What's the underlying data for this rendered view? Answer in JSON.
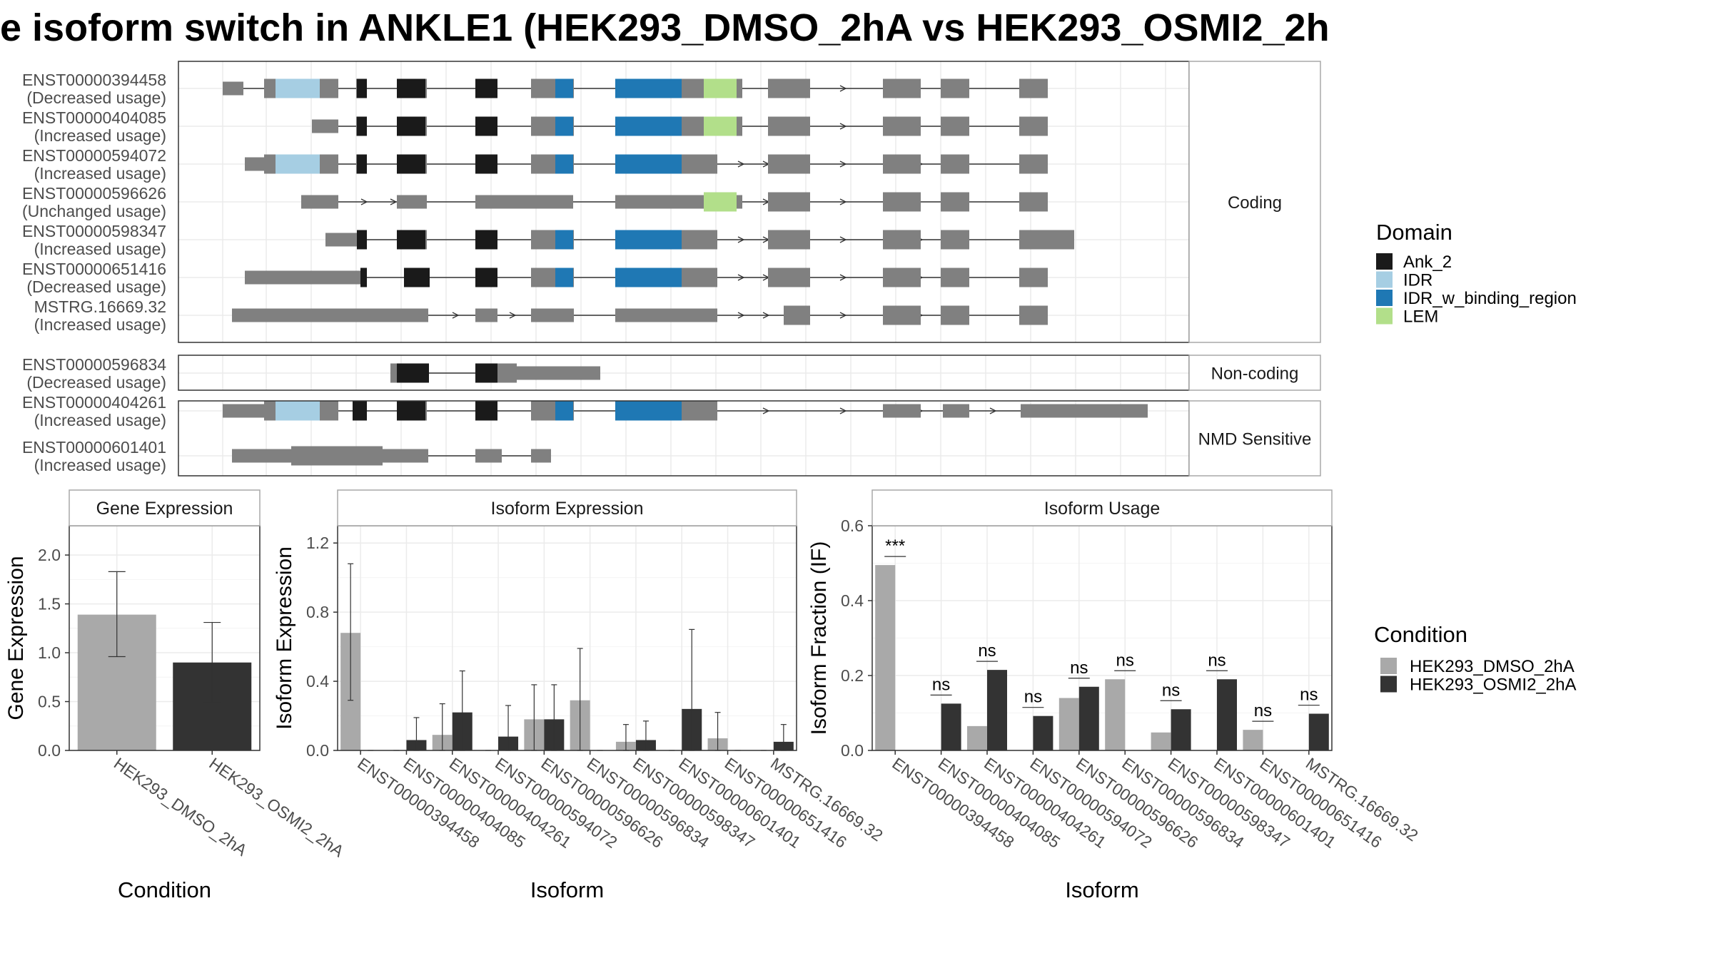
{
  "title": "e isoform switch in ANKLE1 (HEK293_DMSO_2hA vs HEK293_OSMI2_2h",
  "colors": {
    "Ank_2": "#1a1a1a",
    "IDR": "#a6cee3",
    "IDR_w_binding_region": "#1f78b4",
    "LEM": "#b2df8a",
    "exon": "#808080",
    "cond_dmso": "#a9a9a9",
    "cond_osmi": "#333333"
  },
  "legends": {
    "domain": {
      "title": "Domain",
      "items": [
        "Ank_2",
        "IDR",
        "IDR_w_binding_region",
        "LEM"
      ]
    },
    "condition": {
      "title": "Condition",
      "items": [
        "HEK293_DMSO_2hA",
        "HEK293_OSMI2_2hA"
      ]
    }
  },
  "structure": {
    "panels": [
      {
        "label": "Coding",
        "isoforms": [
          {
            "id": "ENST00000394458",
            "usage": "(Decreased usage)"
          },
          {
            "id": "ENST00000404085",
            "usage": "(Increased usage)"
          },
          {
            "id": "ENST00000594072",
            "usage": "(Increased usage)"
          },
          {
            "id": "ENST00000596626",
            "usage": "(Unchanged usage)"
          },
          {
            "id": "ENST00000598347",
            "usage": "(Increased usage)"
          },
          {
            "id": "ENST00000651416",
            "usage": "(Decreased usage)"
          },
          {
            "id": "MSTRG.16669.32",
            "usage": "(Increased usage)"
          }
        ]
      },
      {
        "label": "Non-coding",
        "isoforms": [
          {
            "id": "ENST00000596834",
            "usage": "(Decreased usage)"
          }
        ]
      },
      {
        "label": "NMD Sensitive",
        "isoforms": [
          {
            "id": "ENST00000404261",
            "usage": "(Increased usage)"
          },
          {
            "id": "ENST00000601401",
            "usage": "(Increased usage)"
          }
        ]
      }
    ]
  },
  "chart_data": [
    {
      "type": "bar",
      "title": "Gene Expression",
      "xlabel": "Condition",
      "ylabel": "Gene Expression",
      "ylim": [
        0,
        2.3
      ],
      "yticks": [
        "0.0",
        "0.5",
        "1.0",
        "1.5",
        "2.0"
      ],
      "categories": [
        "HEK293_DMSO_2hA",
        "HEK293_OSMI2_2hA"
      ],
      "values": [
        1.39,
        0.9
      ],
      "errors": [
        [
          0.96,
          1.83
        ],
        [
          0.49,
          1.31
        ]
      ]
    },
    {
      "type": "bar",
      "title": "Isoform Expression",
      "xlabel": "Isoform",
      "ylabel": "Isoform Expression",
      "ylim": [
        0,
        1.3
      ],
      "yticks": [
        "0.0",
        "0.4",
        "0.8",
        "1.2"
      ],
      "categories": [
        "ENST00000394458",
        "ENST00000404085",
        "ENST00000404261",
        "ENST00000594072",
        "ENST00000596626",
        "ENST00000596834",
        "ENST00000598347",
        "ENST00000601401",
        "ENST00000651416",
        "MSTRG.16669.32"
      ],
      "series": [
        {
          "name": "HEK293_DMSO_2hA",
          "values": [
            0.68,
            0,
            0.09,
            0,
            0.18,
            0.29,
            0.05,
            0,
            0.07,
            0
          ],
          "errors": [
            [
              0.29,
              1.08
            ],
            null,
            [
              0,
              0.27
            ],
            null,
            [
              0,
              0.38
            ],
            [
              0,
              0.59
            ],
            [
              0,
              0.15
            ],
            null,
            [
              0,
              0.22
            ],
            null
          ]
        },
        {
          "name": "HEK293_OSMI2_2hA",
          "values": [
            0,
            0.06,
            0.22,
            0.08,
            0.18,
            0,
            0.06,
            0.24,
            0,
            0.05
          ],
          "errors": [
            null,
            [
              0,
              0.19
            ],
            [
              0,
              0.46
            ],
            [
              0,
              0.26
            ],
            [
              0,
              0.38
            ],
            null,
            [
              0,
              0.17
            ],
            [
              0,
              0.7
            ],
            null,
            [
              0,
              0.15
            ]
          ]
        }
      ]
    },
    {
      "type": "bar",
      "title": "Isoform Usage",
      "xlabel": "Isoform",
      "ylabel": "Isoform Fraction (IF)",
      "ylim": [
        0,
        0.6
      ],
      "yticks": [
        "0.0",
        "0.2",
        "0.4",
        "0.6"
      ],
      "categories": [
        "ENST00000394458",
        "ENST00000404085",
        "ENST00000404261",
        "ENST00000594072",
        "ENST00000596626",
        "ENST00000596834",
        "ENST00000598347",
        "ENST00000601401",
        "ENST00000651416",
        "MSTRG.16669.32"
      ],
      "series": [
        {
          "name": "HEK293_DMSO_2hA",
          "values": [
            0.495,
            0,
            0.065,
            0,
            0.14,
            0.19,
            0.048,
            0,
            0.055,
            0
          ]
        },
        {
          "name": "HEK293_OSMI2_2hA",
          "values": [
            0,
            0.125,
            0.215,
            0.092,
            0.17,
            0,
            0.11,
            0.19,
            0,
            0.098
          ]
        }
      ],
      "significance": [
        "***",
        "ns",
        "ns",
        "ns",
        "ns",
        "ns",
        "ns",
        "ns",
        "ns",
        "ns"
      ]
    }
  ]
}
